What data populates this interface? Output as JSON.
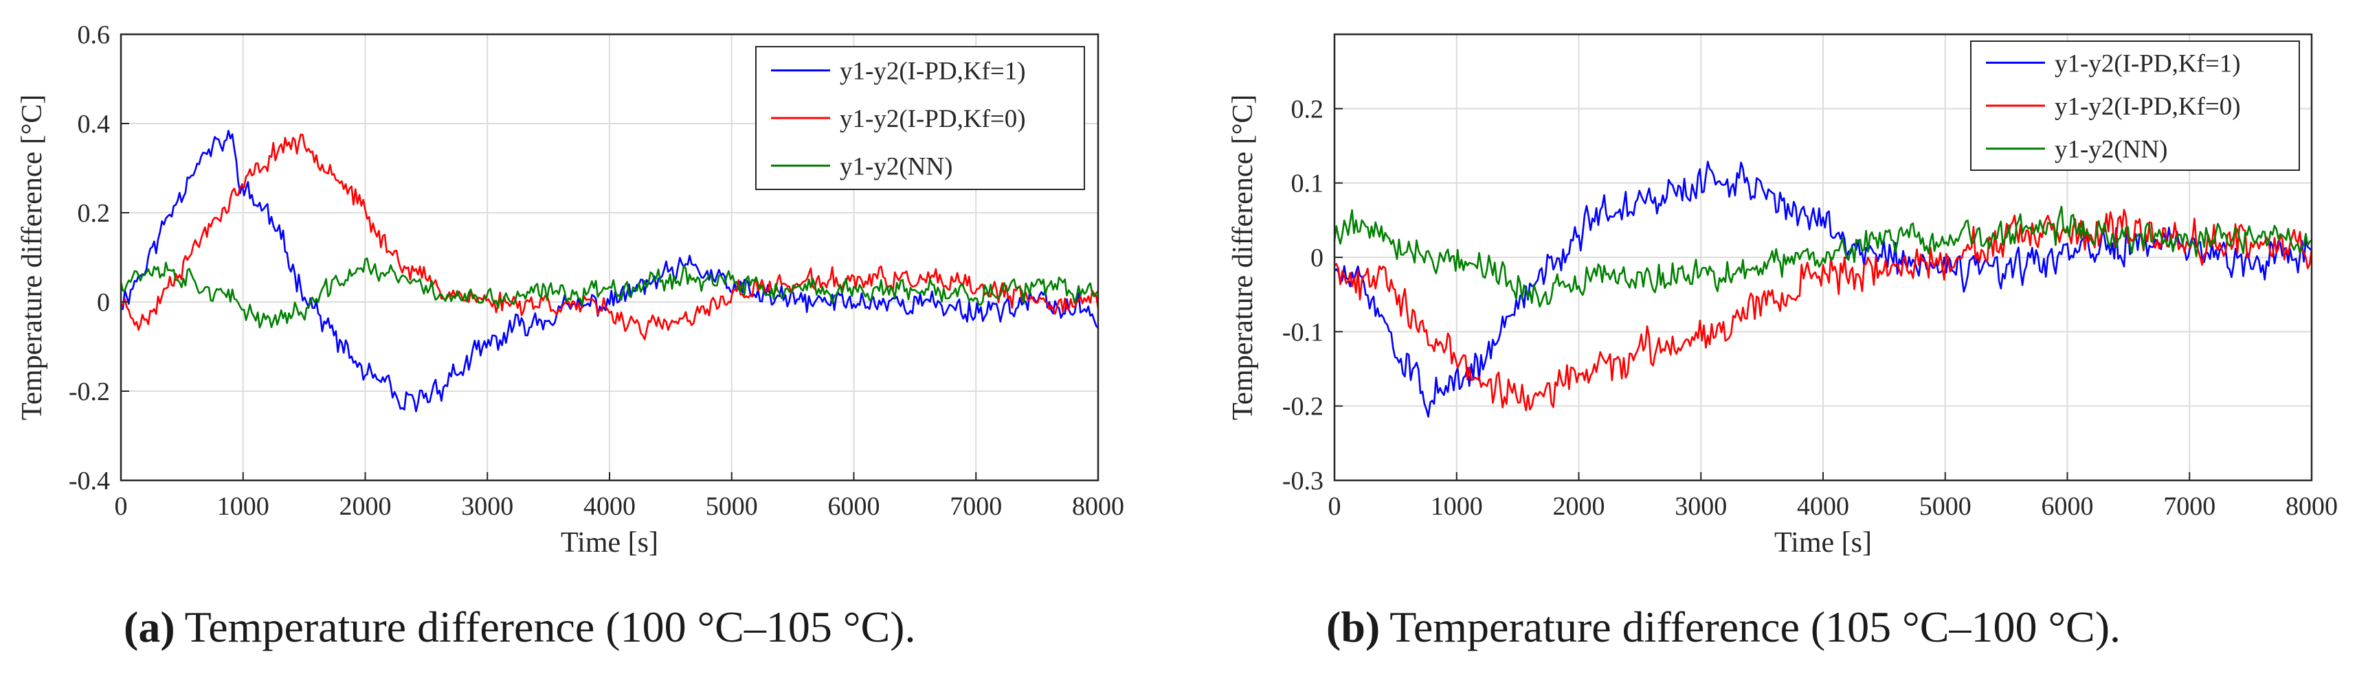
{
  "colors": {
    "blue": "#0000ff",
    "red": "#ff0000",
    "green": "#008000",
    "grid": "#dcdcdc",
    "axis": "#262626"
  },
  "chart_data": [
    {
      "id": "a",
      "type": "line",
      "caption_letter": "(a)",
      "caption_text": "Temperature difference (100 °C–105 °C).",
      "xlabel": "Time [s]",
      "ylabel": "Temperature difference [°C]",
      "xlim": [
        0,
        8000
      ],
      "ylim": [
        -0.4,
        0.6
      ],
      "xticks": [
        0,
        1000,
        2000,
        3000,
        4000,
        5000,
        6000,
        7000,
        8000
      ],
      "xtick_labels": [
        "0",
        "1000",
        "2000",
        "3000",
        "4000",
        "5000",
        "6000",
        "7000",
        "8000"
      ],
      "yticks": [
        -0.4,
        -0.2,
        0,
        0.2,
        0.4,
        0.6
      ],
      "ytick_labels": [
        "-0.4",
        "-0.2",
        "0",
        "0.2",
        "0.4",
        "0.6"
      ],
      "grid": true,
      "legend_position": "top-right",
      "series": [
        {
          "name": "y1-y2(I-PD,Kf=1)",
          "color": "#0000ff",
          "x": [
            0,
            200,
            400,
            600,
            800,
            900,
            1000,
            1200,
            1400,
            1600,
            1800,
            2000,
            2200,
            2300,
            2500,
            2700,
            3000,
            3300,
            3600,
            4000,
            4500,
            4700,
            5000,
            5500,
            6000,
            6500,
            7000,
            7500,
            8000
          ],
          "y": [
            0.0,
            0.08,
            0.2,
            0.31,
            0.35,
            0.37,
            0.25,
            0.2,
            0.08,
            -0.02,
            -0.1,
            -0.16,
            -0.2,
            -0.24,
            -0.21,
            -0.17,
            -0.1,
            -0.05,
            -0.02,
            0.0,
            0.06,
            0.08,
            0.03,
            0.0,
            0.0,
            0.0,
            -0.02,
            0.0,
            -0.03
          ],
          "noise": 0.035,
          "seed": 11
        },
        {
          "name": "y1-y2(I-PD,Kf=0)",
          "color": "#ff0000",
          "x": [
            0,
            200,
            400,
            600,
            800,
            1000,
            1200,
            1350,
            1500,
            1700,
            1900,
            2100,
            2300,
            2600,
            3000,
            3500,
            4000,
            4300,
            4700,
            5000,
            5500,
            6000,
            6500,
            7000,
            7500,
            8000
          ],
          "y": [
            0.0,
            -0.05,
            0.05,
            0.12,
            0.2,
            0.26,
            0.32,
            0.36,
            0.35,
            0.31,
            0.24,
            0.15,
            0.09,
            0.03,
            0.0,
            0.0,
            -0.02,
            -0.06,
            -0.04,
            0.02,
            0.04,
            0.05,
            0.05,
            0.03,
            0.0,
            0.0
          ],
          "noise": 0.03,
          "seed": 23
        },
        {
          "name": "y1-y2(NN)",
          "color": "#008000",
          "x": [
            0,
            300,
            600,
            900,
            1200,
            1500,
            1800,
            2000,
            2300,
            2600,
            3000,
            3500,
            4000,
            4600,
            5000,
            5500,
            6000,
            6500,
            7000,
            7500,
            8000
          ],
          "y": [
            0.05,
            0.08,
            0.05,
            0.0,
            -0.04,
            -0.02,
            0.05,
            0.08,
            0.05,
            0.02,
            0.0,
            0.02,
            0.03,
            0.06,
            0.04,
            0.02,
            0.03,
            0.02,
            0.02,
            0.03,
            0.02
          ],
          "noise": 0.03,
          "seed": 37
        }
      ]
    },
    {
      "id": "b",
      "type": "line",
      "caption_letter": "(b)",
      "caption_text": "Temperature difference (105 °C–100 °C).",
      "xlabel": "Time [s]",
      "ylabel": "Temperature difference [°C]",
      "xlim": [
        0,
        8000
      ],
      "ylim": [
        -0.3,
        0.3
      ],
      "xticks": [
        0,
        1000,
        2000,
        3000,
        4000,
        5000,
        6000,
        7000,
        8000
      ],
      "xtick_labels": [
        "0",
        "1000",
        "2000",
        "3000",
        "4000",
        "5000",
        "6000",
        "7000",
        "8000"
      ],
      "yticks": [
        -0.3,
        -0.2,
        -0.1,
        0,
        0.1,
        0.2
      ],
      "ytick_labels": [
        "-0.3",
        "-0.2",
        "-0.1",
        "0",
        "0.1",
        "0.2"
      ],
      "grid": true,
      "legend_position": "top-right",
      "series": [
        {
          "name": "y1-y2(I-PD,Kf=1)",
          "color": "#0000ff",
          "x": [
            0,
            300,
            600,
            800,
            1000,
            1300,
            1600,
            1900,
            2100,
            2400,
            2700,
            3000,
            3300,
            3600,
            3900,
            4200,
            4600,
            5000,
            5500,
            6000,
            6500,
            7000,
            7500,
            8000
          ],
          "y": [
            -0.02,
            -0.05,
            -0.15,
            -0.19,
            -0.18,
            -0.12,
            -0.04,
            0.02,
            0.05,
            0.07,
            0.08,
            0.1,
            0.11,
            0.08,
            0.05,
            0.02,
            0.0,
            -0.02,
            -0.02,
            0.0,
            0.02,
            0.01,
            0.0,
            0.01
          ],
          "noise": 0.03,
          "seed": 51
        },
        {
          "name": "y1-y2(I-PD,Kf=0)",
          "color": "#ff0000",
          "x": [
            0,
            200,
            400,
            600,
            800,
            1000,
            1200,
            1400,
            1700,
            2000,
            2300,
            2700,
            3000,
            3300,
            3600,
            4000,
            4500,
            5000,
            5500,
            6000,
            6500,
            7000,
            7500,
            8000
          ],
          "y": [
            0.0,
            -0.04,
            0.0,
            -0.08,
            -0.12,
            -0.13,
            -0.17,
            -0.18,
            -0.19,
            -0.16,
            -0.14,
            -0.12,
            -0.1,
            -0.08,
            -0.05,
            -0.02,
            -0.02,
            0.0,
            0.02,
            0.03,
            0.03,
            0.03,
            0.02,
            0.01
          ],
          "noise": 0.03,
          "seed": 67
        },
        {
          "name": "y1-y2(NN)",
          "color": "#008000",
          "x": [
            0,
            200,
            500,
            800,
            1100,
            1400,
            1700,
            2000,
            2300,
            2600,
            3000,
            3400,
            3800,
            4200,
            4600,
            5000,
            5500,
            6000,
            6500,
            7000,
            7500,
            8000
          ],
          "y": [
            0.03,
            0.05,
            0.02,
            0.0,
            0.0,
            -0.03,
            -0.05,
            -0.04,
            -0.02,
            -0.03,
            -0.02,
            -0.02,
            0.0,
            0.01,
            0.03,
            0.02,
            0.03,
            0.04,
            0.03,
            0.02,
            0.03,
            0.02
          ],
          "noise": 0.025,
          "seed": 79
        }
      ]
    }
  ]
}
